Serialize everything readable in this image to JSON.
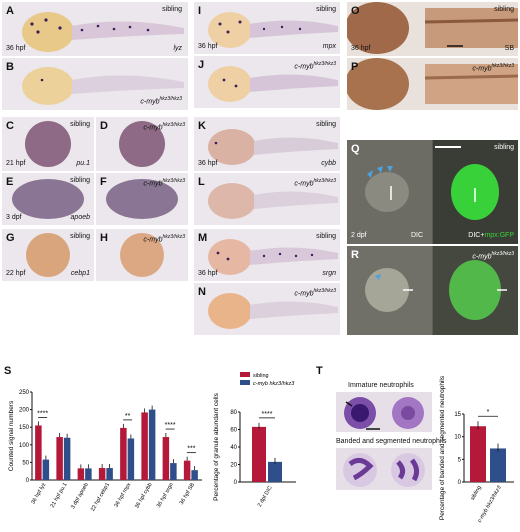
{
  "figure": {
    "panels": {
      "A": {
        "letter": "A",
        "top_right": "sibling",
        "bottom_left": "36 hpf",
        "bottom_right": "lyz"
      },
      "B": {
        "letter": "B",
        "genotype": "c-myb",
        "sup": "hkz3/hkz3"
      },
      "C": {
        "letter": "C",
        "top_right": "sibling",
        "bottom_left": "21 hpf",
        "bottom_right": "pu.1"
      },
      "D": {
        "letter": "D",
        "genotype": "c-myb",
        "sup": "hkz3/hkz3"
      },
      "E": {
        "letter": "E",
        "top_right": "sibling",
        "bottom_left": "3 dpf",
        "bottom_right": "apoeb"
      },
      "F": {
        "letter": "F",
        "genotype": "c-myb",
        "sup": "hkz3/hkz3"
      },
      "G": {
        "letter": "G",
        "top_right": "sibling",
        "bottom_left": "22 hpf",
        "bottom_right": "cebp1"
      },
      "H": {
        "letter": "H",
        "genotype": "c-myb",
        "sup": "hkz3/hkz3"
      },
      "I": {
        "letter": "I",
        "top_right": "sibling",
        "bottom_left": "36 hpf",
        "bottom_right": "mpx"
      },
      "J": {
        "letter": "J",
        "genotype": "c-myb",
        "sup": "hkz3/hkz3"
      },
      "K": {
        "letter": "K",
        "top_right": "sibling",
        "bottom_left": "36 hpf",
        "bottom_right": "cybb"
      },
      "L": {
        "letter": "L",
        "genotype": "c-myb",
        "sup": "hkz3/hkz3"
      },
      "M": {
        "letter": "M",
        "top_right": "sibling",
        "bottom_left": "36 hpf",
        "bottom_right": "srgn"
      },
      "N": {
        "letter": "N",
        "genotype": "c-myb",
        "sup": "hkz3/hkz3"
      },
      "O": {
        "letter": "O",
        "top_right": "sibling",
        "bottom_left": "36 hpf",
        "bottom_right": "SB"
      },
      "P": {
        "letter": "P",
        "genotype": "c-myb",
        "sup": "hkz3/hkz3"
      },
      "Q": {
        "letter": "Q",
        "top_right": "sibling",
        "bottom_left": "2 dpf",
        "dic": "DIC",
        "dic_plus": "DIC+",
        "mpx_gfp": "mpx:GFP"
      },
      "R": {
        "letter": "R",
        "genotype": "c-myb",
        "sup": "hkz3/hkz3"
      },
      "S": {
        "letter": "S"
      },
      "T": {
        "letter": "T",
        "immature": "Immature neutrophils",
        "banded": "Banded and segmented neutrophils"
      }
    },
    "colors": {
      "sibling": "#b5193a",
      "mutant": "#2f4f8a",
      "gfp": "#39d13a"
    }
  },
  "chart_data": [
    {
      "type": "bar",
      "ylabel": "Counted signal numbers",
      "ylim": [
        0,
        250
      ],
      "yticks": [
        "0",
        "50",
        "100",
        "150",
        "200",
        "250"
      ],
      "categories": [
        "36 hpf lyz",
        "21 hpf pu.1",
        "3 dpf apoeb",
        "22 hpf cebp1",
        "36 hpf mpx",
        "36 hpf cybb",
        "36 hpf srgn",
        "36 hpf SB"
      ],
      "series": [
        {
          "name": "sibling",
          "values": [
            155,
            122,
            33,
            34,
            148,
            192,
            122,
            55
          ]
        },
        {
          "name": "c-myb hkz3/hkz3",
          "values": [
            58,
            120,
            33,
            34,
            118,
            200,
            48,
            28
          ]
        }
      ],
      "significance": [
        "****",
        "",
        "",
        "",
        "**",
        "",
        "****",
        "***"
      ]
    },
    {
      "type": "bar",
      "ylabel": "Percentage of granule abundant cells",
      "ylim": [
        0,
        80
      ],
      "yticks": [
        "0",
        "20",
        "40",
        "60",
        "80"
      ],
      "categories": [
        "2 dpf DIC"
      ],
      "series": [
        {
          "name": "sibling",
          "values": [
            63
          ]
        },
        {
          "name": "c-myb hkz3/hkz3",
          "values": [
            23
          ]
        }
      ],
      "significance": [
        "****"
      ]
    },
    {
      "type": "bar",
      "ylabel": "Percentage of banded and segmented neutrophils",
      "ylim": [
        0,
        15
      ],
      "yticks": [
        "0",
        "5",
        "10",
        "15"
      ],
      "categories": [
        "sibling",
        "c-myb hkz3/hkz3"
      ],
      "values": [
        12.3,
        7.4
      ],
      "significance": [
        "*"
      ]
    }
  ]
}
